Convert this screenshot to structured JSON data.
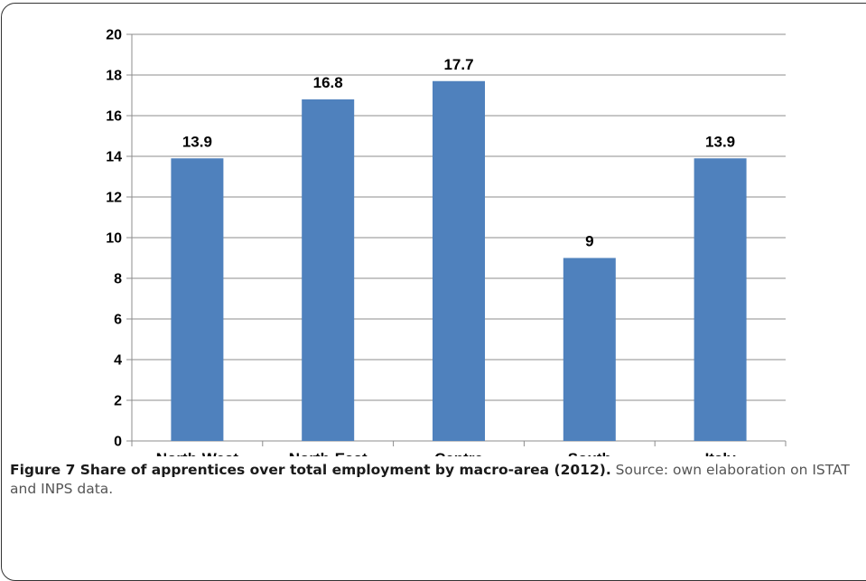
{
  "chart_data": {
    "type": "bar",
    "categories": [
      "North-West",
      "North-East",
      "Centre",
      "South",
      "Italy"
    ],
    "values": [
      13.9,
      16.8,
      17.7,
      9,
      13.9
    ],
    "data_labels": [
      "13.9",
      "16.8",
      "17.7",
      "9",
      "13.9"
    ],
    "title": "",
    "xlabel": "",
    "ylabel": "",
    "ylim": [
      0,
      20
    ],
    "yticks": [
      0,
      2,
      4,
      6,
      8,
      10,
      12,
      14,
      16,
      18,
      20
    ],
    "grid": true,
    "legend": "none",
    "bar_color": "#4f81bd"
  },
  "caption": {
    "figure_title": "Figure 7 Share of apprentices over total employment by macro-area (2012).",
    "description": "Source: own elaboration on ISTAT and INPS data."
  }
}
